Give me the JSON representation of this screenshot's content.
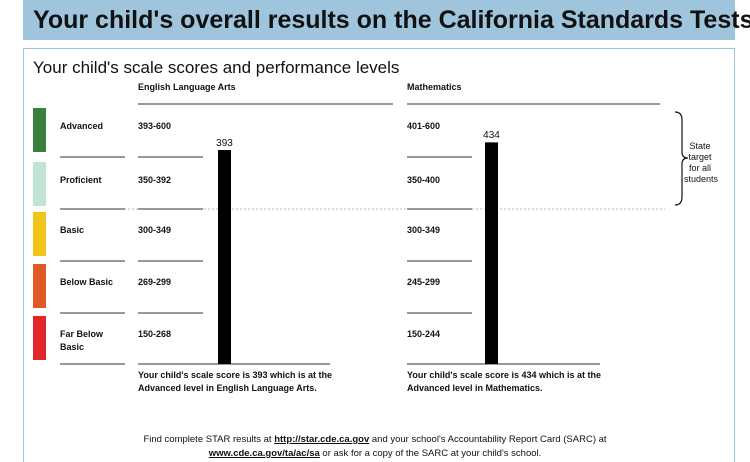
{
  "header": {
    "title": "Your child's overall results on the California Standards Tests"
  },
  "subtitle": "Your child's scale scores and performance levels",
  "levels": [
    {
      "name": "Advanced",
      "color": "#3b7f3c"
    },
    {
      "name": "Proficient",
      "color": "#bfe4d4"
    },
    {
      "name": "Basic",
      "color": "#f1c419"
    },
    {
      "name": "Below Basic",
      "color": "#e05a27"
    },
    {
      "name": "Far Below Basic",
      "color": "#e1262a"
    }
  ],
  "subjects": [
    {
      "name": "English Language Arts",
      "ranges": [
        "393-600",
        "350-392",
        "300-349",
        "269-299",
        "150-268"
      ],
      "score": 393,
      "summary": "Your child's scale score is 393 which is at the Advanced level in English Language Arts."
    },
    {
      "name": "Mathematics",
      "ranges": [
        "401-600",
        "350-400",
        "300-349",
        "245-299",
        "150-244"
      ],
      "score": 434,
      "summary": "Your child's scale score is 434 which is at the Advanced level in Mathematics."
    }
  ],
  "state_target": "State target for all students",
  "footer": {
    "text1": "Find complete STAR results at ",
    "link1": "http://star.cde.ca.gov",
    "text2": " and your school's Accountability Report Card (SARC) at",
    "link2": "www.cde.ca.gov/ta/ac/sa",
    "text3": " or ask for a copy of the SARC at your child's school."
  }
}
